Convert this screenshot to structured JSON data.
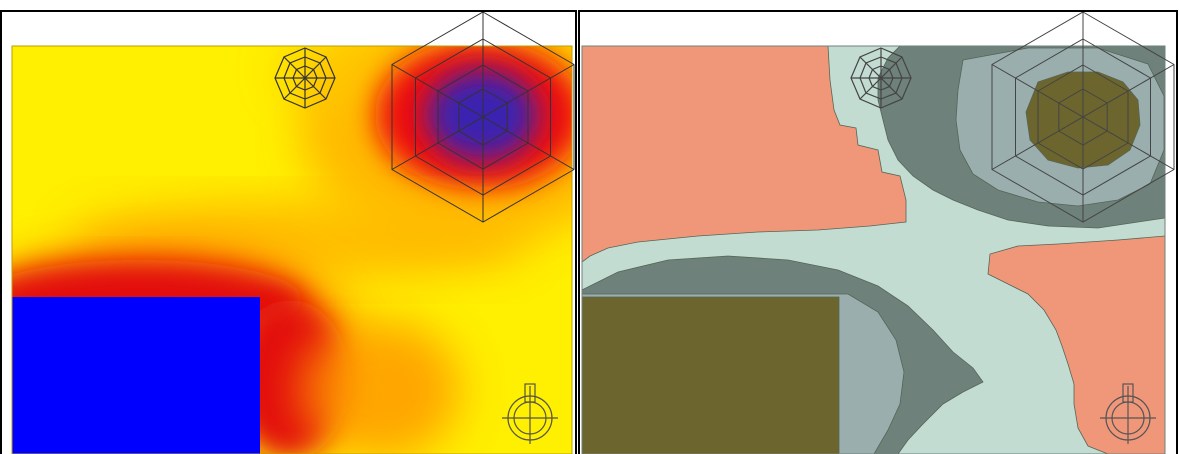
{
  "panels": [
    {
      "id": "heatmap-view",
      "style": "continuous",
      "colors": {
        "background": "#ffef00",
        "low": "#ffef00",
        "mid": "#ffa500",
        "high": "#ff0000",
        "peak": "#3a20b0",
        "solid_block": "#0000ff",
        "frame": "#000000",
        "symbol_stroke": "#333333"
      },
      "icons": [
        "octagon-web-icon",
        "hexagon-web-icon",
        "circle-crosshair-icon"
      ]
    },
    {
      "id": "contour-view",
      "style": "discrete",
      "colors": {
        "background": "#ffffff",
        "level_1": "#f0977a",
        "level_2": "#c3dcd2",
        "level_3": "#9aaeae",
        "level_4": "#6f817b",
        "level_5": "#6c652e",
        "frame": "#000000",
        "symbol_stroke": "#444444"
      },
      "icons": [
        "octagon-web-icon",
        "hexagon-web-icon",
        "circle-crosshair-icon"
      ]
    }
  ]
}
